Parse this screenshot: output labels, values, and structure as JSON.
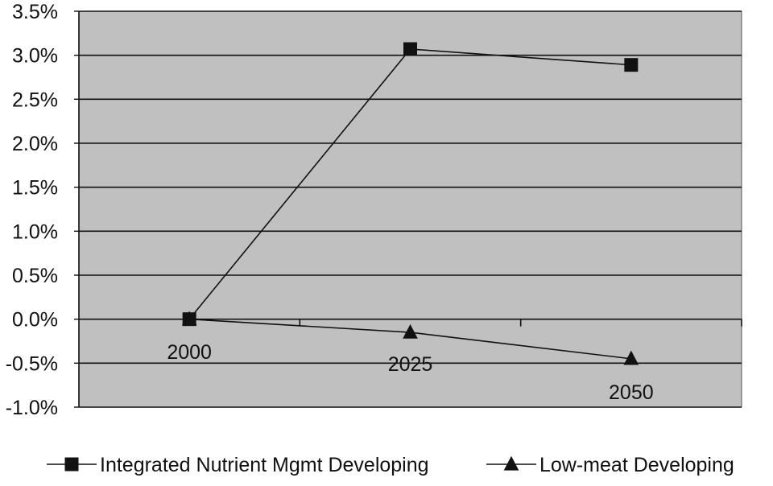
{
  "chart_data": {
    "type": "line",
    "title": "",
    "xlabel": "",
    "ylabel": "",
    "categories": [
      "2000",
      "2025",
      "2050"
    ],
    "ylim": [
      -0.01,
      0.035
    ],
    "yticks": [
      {
        "value": 0.035,
        "label": "3.5%"
      },
      {
        "value": 0.03,
        "label": "3.0%"
      },
      {
        "value": 0.025,
        "label": "2.5%"
      },
      {
        "value": 0.02,
        "label": "2.0%"
      },
      {
        "value": 0.015,
        "label": "1.5%"
      },
      {
        "value": 0.01,
        "label": "1.0%"
      },
      {
        "value": 0.005,
        "label": "0.5%"
      },
      {
        "value": 0.0,
        "label": "0.0%"
      },
      {
        "value": -0.005,
        "label": "-0.5%"
      },
      {
        "value": -0.01,
        "label": "-1.0%"
      }
    ],
    "grid": true,
    "legend_position": "bottom",
    "series": [
      {
        "name": "Integrated Nutrient Mgmt Developing",
        "marker": "square",
        "values": [
          0.0,
          0.0307,
          0.0289
        ]
      },
      {
        "name": "Low-meat Developing",
        "marker": "triangle",
        "values": [
          0.0,
          -0.0015,
          -0.0045
        ]
      }
    ],
    "colors": {
      "plot_background": "#c0c0c0",
      "line": "#111111",
      "grid": "#111111"
    }
  }
}
